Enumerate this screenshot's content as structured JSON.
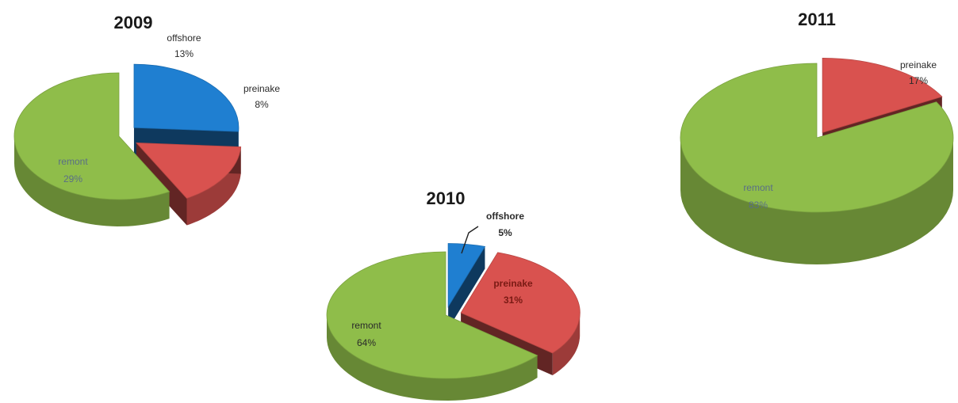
{
  "colors": {
    "offshore": "#1f7fd1",
    "preinake": "#d9524f",
    "remont": "#8fbd4a",
    "label_on_green": "#5a6f86",
    "label_on_red": "#7a1a14",
    "label_dark": "#2a2a2a"
  },
  "chart_data": [
    {
      "type": "pie",
      "title": "2009",
      "slices": [
        {
          "key": "offshore",
          "label": "offshore",
          "pct_text": "13%",
          "value": 13
        },
        {
          "key": "preinake",
          "label": "preinake",
          "pct_text": "8%",
          "value": 8
        },
        {
          "key": "remont",
          "label": "remont",
          "pct_text": "29%",
          "value": 29
        }
      ]
    },
    {
      "type": "pie",
      "title": "2010",
      "slices": [
        {
          "key": "offshore",
          "label": "offshore",
          "pct_text": "5%",
          "value": 5
        },
        {
          "key": "preinake",
          "label": "preinake",
          "pct_text": "31%",
          "value": 31
        },
        {
          "key": "remont",
          "label": "remont",
          "pct_text": "64%",
          "value": 64
        }
      ]
    },
    {
      "type": "pie",
      "title": "2011",
      "slices": [
        {
          "key": "preinake",
          "label": "preinake",
          "pct_text": "17%",
          "value": 17
        },
        {
          "key": "remont",
          "label": "remont",
          "pct_text": "83%",
          "value": 83
        }
      ]
    }
  ]
}
